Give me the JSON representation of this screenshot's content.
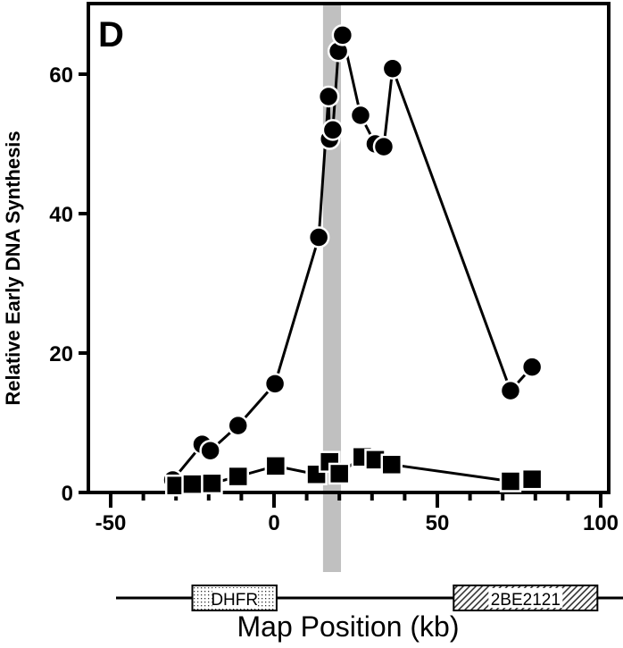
{
  "chart_data": {
    "type": "line",
    "panel_label": "D",
    "xlabel": "Map Position (kb)",
    "ylabel": "Relative Early DNA Synthesis",
    "xlim": [
      -50,
      100
    ],
    "ylim": [
      0,
      70
    ],
    "xticks": [
      -50,
      0,
      50,
      100
    ],
    "yticks": [
      0,
      20,
      40,
      60
    ],
    "grid": false,
    "highlight_band": {
      "x": [
        15,
        20.5
      ],
      "color": "#c0c0c0"
    },
    "series": [
      {
        "name": "circles",
        "marker": "circle",
        "points": [
          [
            -31,
            1.8
          ],
          [
            -22,
            6.9
          ],
          [
            -19.5,
            6.0
          ],
          [
            -11,
            9.6
          ],
          [
            0.3,
            15.6
          ],
          [
            13.7,
            36.6
          ],
          [
            16.7,
            56.8
          ],
          [
            17,
            50.7
          ],
          [
            18,
            52
          ],
          [
            19.7,
            63.3
          ],
          [
            21,
            65.6
          ],
          [
            26.5,
            54.1
          ],
          [
            31,
            50
          ],
          [
            33.6,
            49.6
          ],
          [
            36.3,
            60.8
          ],
          [
            72.4,
            14.6
          ],
          [
            79,
            18
          ]
        ]
      },
      {
        "name": "squares",
        "marker": "square",
        "points": [
          [
            -30,
            1
          ],
          [
            -25,
            1.2
          ],
          [
            -19,
            1.3
          ],
          [
            -11,
            2.3
          ],
          [
            0.5,
            3.8
          ],
          [
            13,
            2.6
          ],
          [
            17,
            4.4
          ],
          [
            20,
            2.7
          ],
          [
            27,
            5.1
          ],
          [
            31,
            4.7
          ],
          [
            36,
            4
          ],
          [
            72.4,
            1.6
          ],
          [
            79,
            1.9
          ]
        ]
      }
    ],
    "gene_map": [
      {
        "label": "DHFR",
        "x": [
          -25,
          0.8
        ],
        "pattern": "dots"
      },
      {
        "label": "2BE2121",
        "x": [
          55,
          99
        ],
        "pattern": "hatch"
      }
    ]
  }
}
